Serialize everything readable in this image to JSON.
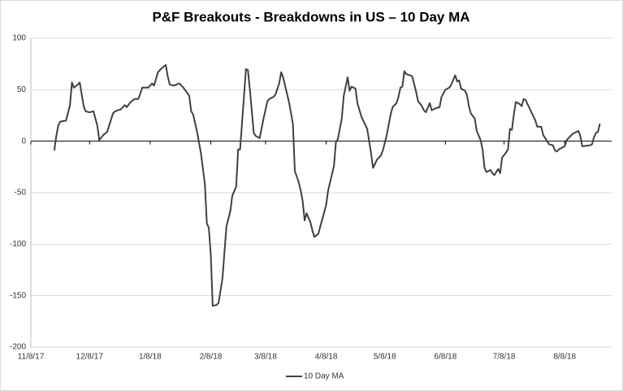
{
  "chart_data": {
    "type": "line",
    "title": "P&F Breakouts - Breakdowns in US – 10 Day MA",
    "x": [
      "2017-11-20",
      "2017-11-21",
      "2017-11-22",
      "2017-11-23",
      "2017-11-26",
      "2017-11-28",
      "2017-11-29",
      "2017-11-30",
      "2017-12-02",
      "2017-12-03",
      "2017-12-05",
      "2017-12-06",
      "2017-12-08",
      "2017-12-10",
      "2017-12-12",
      "2017-12-13",
      "2017-12-15",
      "2017-12-17",
      "2017-12-20",
      "2017-12-21",
      "2017-12-24",
      "2017-12-26",
      "2017-12-27",
      "2017-12-29",
      "2017-12-31",
      "2018-01-02",
      "2018-01-04",
      "2018-01-07",
      "2018-01-09",
      "2018-01-10",
      "2018-01-12",
      "2018-01-14",
      "2018-01-16",
      "2018-01-17",
      "2018-01-18",
      "2018-01-20",
      "2018-01-23",
      "2018-01-25",
      "2018-01-28",
      "2018-01-29",
      "2018-01-30",
      "2018-02-01",
      "2018-02-03",
      "2018-02-05",
      "2018-02-06",
      "2018-02-07",
      "2018-02-08",
      "2018-02-09",
      "2018-02-11",
      "2018-02-12",
      "2018-02-14",
      "2018-02-16",
      "2018-02-18",
      "2018-02-19",
      "2018-02-21",
      "2018-02-22",
      "2018-02-23",
      "2018-02-24",
      "2018-02-25",
      "2018-02-26",
      "2018-02-27",
      "2018-02-28",
      "2018-03-02",
      "2018-03-03",
      "2018-03-05",
      "2018-03-07",
      "2018-03-09",
      "2018-03-10",
      "2018-03-12",
      "2018-03-13",
      "2018-03-15",
      "2018-03-16",
      "2018-03-17",
      "2018-03-18",
      "2018-03-20",
      "2018-03-22",
      "2018-03-23",
      "2018-03-25",
      "2018-03-26",
      "2018-03-27",
      "2018-03-28",
      "2018-03-29",
      "2018-03-31",
      "2018-04-01",
      "2018-04-02",
      "2018-04-04",
      "2018-04-06",
      "2018-04-08",
      "2018-04-09",
      "2018-04-12",
      "2018-04-13",
      "2018-04-14",
      "2018-04-16",
      "2018-04-17",
      "2018-04-19",
      "2018-04-20",
      "2018-04-21",
      "2018-04-23",
      "2018-04-24",
      "2018-04-26",
      "2018-04-27",
      "2018-04-29",
      "2018-05-01",
      "2018-05-02",
      "2018-05-04",
      "2018-05-06",
      "2018-05-07",
      "2018-05-09",
      "2018-05-11",
      "2018-05-12",
      "2018-05-14",
      "2018-05-15",
      "2018-05-16",
      "2018-05-17",
      "2018-05-18",
      "2018-05-19",
      "2018-05-21",
      "2018-05-22",
      "2018-05-24",
      "2018-05-25",
      "2018-05-27",
      "2018-05-28",
      "2018-05-29",
      "2018-05-31",
      "2018-06-01",
      "2018-06-03",
      "2018-06-05",
      "2018-06-06",
      "2018-06-08",
      "2018-06-10",
      "2018-06-11",
      "2018-06-13",
      "2018-06-14",
      "2018-06-15",
      "2018-06-16",
      "2018-06-18",
      "2018-06-19",
      "2018-06-20",
      "2018-06-21",
      "2018-06-23",
      "2018-06-24",
      "2018-06-26",
      "2018-06-27",
      "2018-06-28",
      "2018-06-29",
      "2018-07-01",
      "2018-07-02",
      "2018-07-03",
      "2018-07-05",
      "2018-07-06",
      "2018-07-07",
      "2018-07-09",
      "2018-07-10",
      "2018-07-11",
      "2018-07-12",
      "2018-07-13",
      "2018-07-14",
      "2018-07-16",
      "2018-07-17",
      "2018-07-18",
      "2018-07-19",
      "2018-07-21",
      "2018-07-23",
      "2018-07-24",
      "2018-07-25",
      "2018-07-27",
      "2018-07-28",
      "2018-07-30",
      "2018-07-31",
      "2018-08-02",
      "2018-08-03",
      "2018-08-04",
      "2018-08-05",
      "2018-08-07",
      "2018-08-08",
      "2018-08-09",
      "2018-08-10",
      "2018-08-12",
      "2018-08-15",
      "2018-08-16",
      "2018-08-17",
      "2018-08-21",
      "2018-08-22",
      "2018-08-23",
      "2018-08-24",
      "2018-08-25",
      "2018-08-26"
    ],
    "series": [
      {
        "name": "10 Day MA",
        "color": "#404040",
        "values": [
          -9,
          5,
          15,
          19,
          20,
          35,
          57,
          52,
          55,
          57,
          34,
          29,
          28,
          29,
          15,
          1,
          6,
          9,
          27,
          29,
          31,
          35,
          33,
          38,
          41,
          41,
          52,
          52,
          56,
          54,
          67,
          71,
          74,
          63,
          55,
          54,
          56,
          52,
          44,
          29,
          26,
          9,
          -12,
          -42,
          -80,
          -84,
          -110,
          -160,
          -159,
          -157,
          -133,
          -83,
          -68,
          -53,
          -44,
          -8,
          -8,
          18,
          44,
          70,
          69,
          50,
          8,
          5,
          3,
          22,
          39,
          41,
          43,
          45,
          56,
          67,
          62,
          54,
          38,
          17,
          -29,
          -40,
          -48,
          -58,
          -77,
          -70,
          -79,
          -87,
          -93,
          -90,
          -76,
          -62,
          -48,
          -24,
          -1,
          2,
          22,
          44,
          62,
          49,
          53,
          51,
          37,
          24,
          20,
          12,
          -12,
          -26,
          -18,
          -14,
          -9,
          6,
          26,
          33,
          37,
          43,
          52,
          53,
          68,
          65,
          64,
          63,
          48,
          39,
          34,
          30,
          28,
          37,
          30,
          32,
          33,
          43,
          50,
          52,
          55,
          64,
          58,
          59,
          51,
          49,
          45,
          34,
          27,
          22,
          10,
          1,
          -8,
          -26,
          -30,
          -28,
          -31,
          -33,
          -27,
          -31,
          -16,
          -11,
          -8,
          12,
          11,
          26,
          38,
          36,
          34,
          41,
          40,
          32,
          24,
          20,
          14,
          14,
          6,
          0,
          -3,
          -4,
          -9,
          -10,
          -8,
          -6,
          -5,
          1,
          3,
          7,
          10,
          5,
          -5,
          -4,
          -3,
          4,
          8,
          9,
          17
        ]
      }
    ],
    "xlim": [
      "2017-11-08",
      "2018-09-01"
    ],
    "xticks": [
      {
        "value": "2017-11-08",
        "label": "11/8/17"
      },
      {
        "value": "2017-12-08",
        "label": "12/8/17"
      },
      {
        "value": "2018-01-08",
        "label": "1/8/18"
      },
      {
        "value": "2018-02-08",
        "label": "2/8/18"
      },
      {
        "value": "2018-03-08",
        "label": "3/8/18"
      },
      {
        "value": "2018-04-08",
        "label": "4/8/18"
      },
      {
        "value": "2018-05-08",
        "label": "5/8/18"
      },
      {
        "value": "2018-06-08",
        "label": "6/8/18"
      },
      {
        "value": "2018-07-08",
        "label": "7/8/18"
      },
      {
        "value": "2018-08-08",
        "label": "8/8/18"
      }
    ],
    "ylim": [
      -200,
      100
    ],
    "yticks": [
      -200,
      -150,
      -100,
      -50,
      0,
      50,
      100
    ],
    "grid": true,
    "legend": "bottom"
  }
}
